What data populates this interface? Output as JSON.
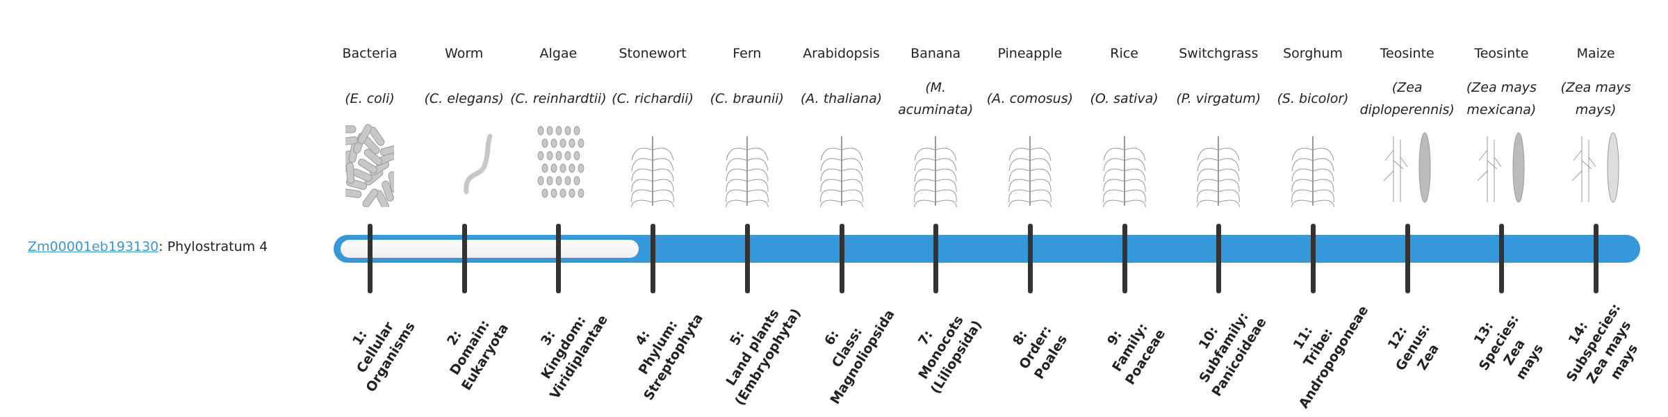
{
  "gene": {
    "id": "Zm00001eb193130",
    "suffix": ": Phylostratum 4"
  },
  "bar": {
    "phylostratum": 4,
    "total": 14,
    "fill_color": "#3498db",
    "empty_color": "#f4f4f4"
  },
  "columns": [
    {
      "common": "Bacteria",
      "sci": "(E. coli)",
      "icon": "bacteria-image",
      "label": "1:\nCellular\nOrganisms"
    },
    {
      "common": "Worm",
      "sci": "(C. elegans)",
      "icon": "worm-image",
      "label": "2:\nDomain:\nEukaryota"
    },
    {
      "common": "Algae",
      "sci": "(C. reinhardtii)",
      "icon": "algae-image",
      "label": "3:\nKingdom:\nViridiplantae"
    },
    {
      "common": "Stonewort",
      "sci": "(C. richardii)",
      "icon": "stonewort-image",
      "label": "4:\nPhylum:\nStreptophyta"
    },
    {
      "common": "Fern",
      "sci": "(C. braunii)",
      "icon": "fern-image",
      "label": "5:\nLand plants\n(Embryophyta)"
    },
    {
      "common": "Arabidopsis",
      "sci": "(A. thaliana)",
      "icon": "arabidopsis-image",
      "label": "6:\nClass:\nMagnoliopsida"
    },
    {
      "common": "Banana",
      "sci": "(M. acuminata)",
      "icon": "banana-image",
      "label": "7:\nMonocots\n(Liliopsida)"
    },
    {
      "common": "Pineapple",
      "sci": "(A. comosus)",
      "icon": "pineapple-image",
      "label": "8:\nOrder:\nPoales"
    },
    {
      "common": "Rice",
      "sci": "(O. sativa)",
      "icon": "rice-image",
      "label": "9:\nFamily:\nPoaceae"
    },
    {
      "common": "Switchgrass",
      "sci": "(P. virgatum)",
      "icon": "switchgrass-image",
      "label": "10:\nSubfamily:\nPanicoideae"
    },
    {
      "common": "Sorghum",
      "sci": "(S. bicolor)",
      "icon": "sorghum-image",
      "label": "11:\nTribe:\nAndropogoneae"
    },
    {
      "common": "Teosinte",
      "sci": "(Zea diploperennis)",
      "icon": "teosinte-image",
      "label": "12:\nGenus:\nZea"
    },
    {
      "common": "Teosinte",
      "sci": "(Zea mays mexicana)",
      "icon": "teosinte-mexicana-image",
      "label": "13:\nSpecies:\nZea\nmays"
    },
    {
      "common": "Maize",
      "sci": "(Zea mays mays)",
      "icon": "maize-image",
      "label": "14:\nSubspecies:\nZea mays\nmays"
    }
  ]
}
